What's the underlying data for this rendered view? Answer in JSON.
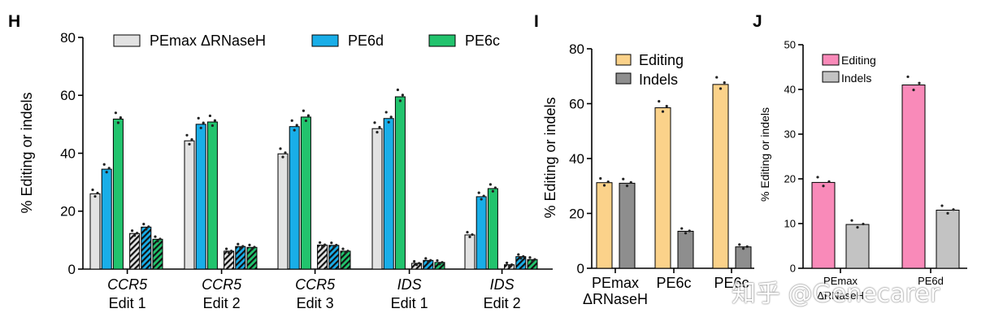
{
  "colors": {
    "pemax": "#e2e2e2",
    "pe6d": "#19aee8",
    "pe6c": "#22c36d",
    "editing": "#fbd28a",
    "indels": "#8e8e8e",
    "editing_j": "#f98ab9",
    "indels_j": "#c3c3c3",
    "axis": "#000000"
  },
  "watermark": "知乎 @Genecarer",
  "chart_data": [
    {
      "panel": "H",
      "type": "bar",
      "title": "",
      "ylabel": "% Editing or indels",
      "ylim": [
        0,
        80
      ],
      "yticks": [
        0,
        20,
        40,
        60,
        80
      ],
      "groups": [
        {
          "gene": "CCR5",
          "edit": "Edit 1"
        },
        {
          "gene": "CCR5",
          "edit": "Edit 2"
        },
        {
          "gene": "CCR5",
          "edit": "Edit 3"
        },
        {
          "gene": "IDS",
          "edit": "Edit 1"
        },
        {
          "gene": "IDS",
          "edit": "Edit 2"
        }
      ],
      "series": [
        {
          "name": "PEmax ΔRNaseH",
          "measure": "editing",
          "values": [
            26,
            44.3,
            39.8,
            48.5,
            11.8
          ]
        },
        {
          "name": "PE6d",
          "measure": "editing",
          "values": [
            34.5,
            50,
            49.2,
            52,
            25
          ]
        },
        {
          "name": "PE6c",
          "measure": "editing",
          "values": [
            51.8,
            50.8,
            52.5,
            59.5,
            27.8
          ]
        },
        {
          "name": "PEmax ΔRNaseH",
          "measure": "indels",
          "values": [
            12.3,
            6.2,
            8.3,
            2,
            1.5
          ]
        },
        {
          "name": "PE6d",
          "measure": "indels",
          "values": [
            14.5,
            7.8,
            8.2,
            3,
            4.3
          ]
        },
        {
          "name": "PE6c",
          "measure": "indels",
          "values": [
            10.3,
            7.5,
            6.2,
            2.3,
            3.3
          ]
        }
      ],
      "legend": [
        "PEmax ΔRNaseH",
        "PE6d",
        "PE6c"
      ],
      "legend_position": "top"
    },
    {
      "panel": "I",
      "type": "bar",
      "title": "",
      "ylabel": "% Editing or indels",
      "ylim": [
        0,
        80
      ],
      "yticks": [
        0,
        20,
        40,
        60,
        80
      ],
      "categories": [
        "PEmax\nΔRNaseH",
        "PE6c",
        "PE6c"
      ],
      "series": [
        {
          "name": "Editing",
          "values": [
            31.2,
            58.5,
            67
          ]
        },
        {
          "name": "Indels",
          "values": [
            31,
            13.5,
            7.8
          ]
        }
      ],
      "legend": [
        "Editing",
        "Indels"
      ],
      "legend_position": "top-left"
    },
    {
      "panel": "J",
      "type": "bar",
      "title": "",
      "ylabel": "% Editing or indels",
      "ylim": [
        0,
        50
      ],
      "yticks": [
        0,
        10,
        20,
        30,
        40,
        50
      ],
      "categories": [
        "PEmax\nΔRNaseH",
        "PE6d"
      ],
      "series": [
        {
          "name": "Editing",
          "values": [
            19.2,
            41
          ]
        },
        {
          "name": "Indels",
          "values": [
            9.8,
            13
          ]
        }
      ],
      "legend": [
        "Editing",
        "Indels"
      ],
      "legend_position": "top-left"
    }
  ]
}
